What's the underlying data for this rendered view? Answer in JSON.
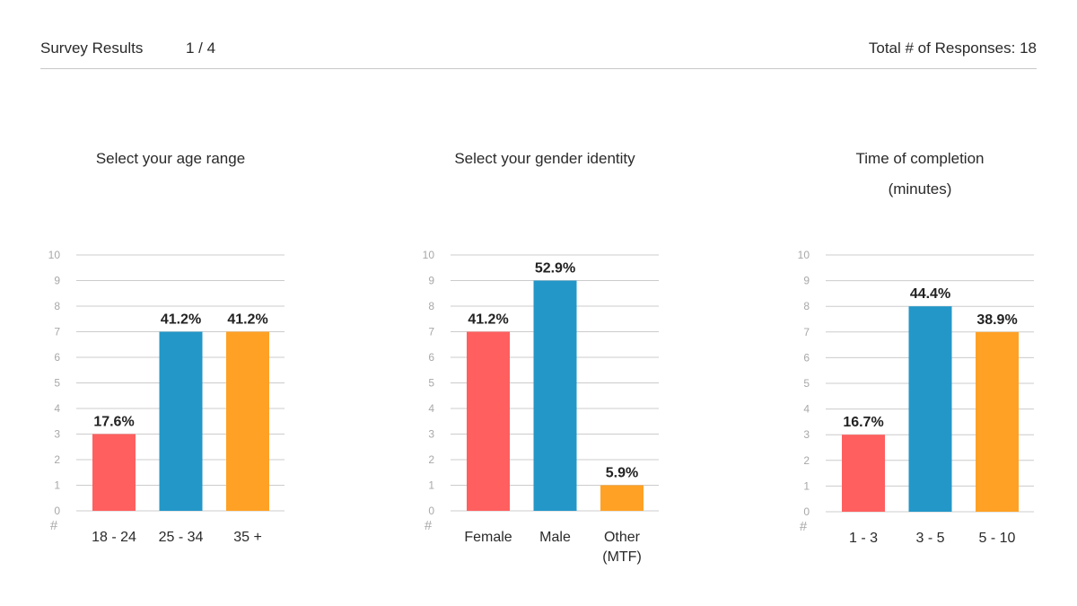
{
  "header": {
    "title": "Survey Results",
    "page": "1 / 4",
    "responses": "Total # of Responses: 18"
  },
  "colors": {
    "red": "#ff5f5f",
    "blue": "#2397c8",
    "orange": "#ffa125",
    "grid": "#cccccc"
  },
  "y_unit_label": "#",
  "chart_data": [
    {
      "type": "bar",
      "title": "Select your age range",
      "categories": [
        [
          "18 - 24"
        ],
        [
          "25 - 34"
        ],
        [
          "35 +"
        ]
      ],
      "values": [
        3,
        7,
        7
      ],
      "data_labels": [
        "17.6%",
        "41.2%",
        "41.2%"
      ],
      "ylim": [
        0,
        10
      ],
      "yticks": [
        0,
        1,
        2,
        3,
        4,
        5,
        6,
        7,
        8,
        9,
        10
      ],
      "grid": true
    },
    {
      "type": "bar",
      "title": "Select your gender identity",
      "categories": [
        [
          "Female"
        ],
        [
          "Male"
        ],
        [
          "Other",
          "(MTF)"
        ]
      ],
      "values": [
        7,
        9,
        1
      ],
      "data_labels": [
        "41.2%",
        "52.9%",
        "5.9%"
      ],
      "ylim": [
        0,
        10
      ],
      "yticks": [
        0,
        1,
        2,
        3,
        4,
        5,
        6,
        7,
        8,
        9,
        10
      ],
      "grid": true
    },
    {
      "type": "bar",
      "title": "Time of completion (minutes)",
      "title_lines": [
        "Time of completion",
        "(minutes)"
      ],
      "categories": [
        [
          "1 - 3"
        ],
        [
          "3 - 5"
        ],
        [
          "5 - 10"
        ]
      ],
      "values": [
        3,
        8,
        7
      ],
      "data_labels": [
        "16.7%",
        "44.4%",
        "38.9%"
      ],
      "ylim": [
        0,
        10
      ],
      "yticks": [
        0,
        1,
        2,
        3,
        4,
        5,
        6,
        7,
        8,
        9,
        10
      ],
      "grid": true
    }
  ]
}
